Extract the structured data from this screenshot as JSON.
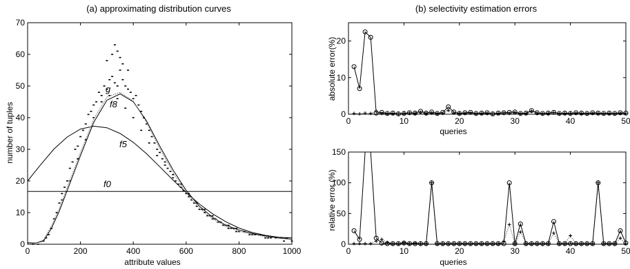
{
  "chart_data": [
    {
      "type": "scatter",
      "title": "(a) approximating distribution curves",
      "xlabel": "attribute values",
      "ylabel": "number of tuples",
      "xlim": [
        0,
        1000
      ],
      "ylim": [
        0,
        70
      ],
      "xticks": [
        0,
        200,
        400,
        600,
        800,
        1000
      ],
      "yticks": [
        0,
        10,
        20,
        30,
        40,
        50,
        60,
        70
      ],
      "grid": false,
      "series": [
        {
          "kind": "scatter",
          "x": [
            20,
            40,
            60,
            70,
            80,
            90,
            100,
            110,
            120,
            130,
            140,
            150,
            160,
            170,
            180,
            190,
            200,
            210,
            220,
            230,
            240,
            250,
            260,
            270,
            280,
            290,
            300,
            310,
            320,
            330,
            340,
            350,
            360,
            370,
            380,
            390,
            400,
            410,
            420,
            430,
            440,
            450,
            460,
            470,
            480,
            490,
            500,
            510,
            520,
            530,
            540,
            550,
            560,
            570,
            580,
            590,
            600,
            610,
            620,
            630,
            640,
            650,
            660,
            670,
            680,
            690,
            700,
            710,
            720,
            730,
            740,
            750,
            760,
            770,
            780,
            790,
            800,
            820,
            840,
            860,
            880,
            900,
            920,
            940,
            960,
            980,
            1000,
            130,
            160,
            190,
            220,
            250,
            280,
            310,
            340,
            370,
            400,
            430,
            460,
            490,
            520,
            550,
            580,
            610,
            640,
            670,
            700,
            730,
            760,
            790,
            820,
            850,
            880,
            910,
            940,
            970,
            300,
            320,
            340,
            360,
            380,
            330,
            350
          ],
          "y": [
            0,
            0,
            1,
            2,
            3,
            5,
            8,
            10,
            13,
            16,
            18,
            20,
            24,
            26,
            30,
            31,
            34,
            36,
            38,
            41,
            42,
            44,
            45,
            48,
            47,
            50,
            49,
            52,
            53,
            51,
            50,
            55,
            52,
            50,
            49,
            48,
            46,
            47,
            44,
            42,
            40,
            38,
            36,
            34,
            32,
            30,
            29,
            27,
            26,
            24,
            23,
            21,
            20,
            19,
            18,
            17,
            16,
            15,
            14,
            13,
            12,
            11,
            11,
            10,
            9,
            9,
            8,
            8,
            7,
            7,
            6,
            6,
            5,
            5,
            5,
            4,
            4,
            4,
            3,
            3,
            3,
            2,
            2,
            2,
            2,
            2,
            1,
            14,
            20,
            27,
            33,
            40,
            45,
            47,
            46,
            43,
            40,
            36,
            32,
            28,
            25,
            22,
            19,
            16,
            13,
            11,
            9,
            7,
            6,
            5,
            4,
            3,
            3,
            2,
            2,
            1,
            58,
            60,
            61,
            57,
            55,
            63,
            59
          ]
        },
        {
          "name": "f0",
          "kind": "line",
          "x": [
            0,
            1000
          ],
          "y": [
            16.7,
            16.7
          ]
        },
        {
          "name": "f5",
          "kind": "line",
          "x": [
            0,
            50,
            100,
            150,
            200,
            250,
            300,
            350,
            400,
            450,
            500,
            550,
            600,
            650,
            700,
            750,
            800,
            850,
            900,
            950,
            1000
          ],
          "y": [
            20.0,
            25.2,
            30.1,
            33.9,
            36.4,
            37.3,
            36.8,
            35.0,
            32.2,
            28.6,
            24.5,
            20.3,
            16.3,
            12.7,
            9.6,
            7.1,
            5.1,
            3.7,
            2.8,
            2.2,
            2.0
          ]
        },
        {
          "name": "f8",
          "kind": "line",
          "x": [
            0,
            30,
            60,
            90,
            120,
            150,
            200,
            250,
            300,
            350,
            400,
            450,
            500,
            550,
            600,
            650,
            700,
            750,
            800,
            850,
            900,
            950,
            1000
          ],
          "y": [
            0.5,
            0.4,
            1.0,
            5.0,
            10.5,
            17.0,
            28.0,
            38.5,
            45.5,
            47.5,
            45.0,
            39.0,
            31.0,
            23.5,
            17.0,
            12.0,
            8.5,
            6.0,
            4.5,
            3.4,
            2.6,
            2.0,
            1.6
          ]
        },
        {
          "name": "g",
          "kind": "line",
          "x": [
            0,
            30,
            60,
            90,
            120,
            150,
            200,
            250,
            300,
            350,
            400,
            450,
            500,
            550,
            600,
            650,
            700,
            750,
            800,
            850,
            900,
            950,
            1000
          ],
          "y": [
            0.3,
            0.3,
            1.4,
            5.8,
            11.4,
            18.0,
            29.0,
            39.5,
            46.5,
            48.0,
            45.2,
            38.5,
            30.2,
            22.7,
            16.3,
            11.4,
            8.0,
            5.6,
            4.1,
            3.1,
            2.4,
            1.9,
            1.5
          ]
        }
      ]
    },
    {
      "type": "line",
      "title": "(b) selectivity estimation errors",
      "xlabel": "queries",
      "ylabel": "absolute error(%)",
      "xlim": [
        0,
        50
      ],
      "ylim": [
        0,
        25
      ],
      "xticks": [
        0,
        10,
        20,
        30,
        40,
        50
      ],
      "yticks": [
        0,
        10,
        20
      ],
      "series": [
        {
          "kind": "circle-line",
          "x": [
            1,
            2,
            3,
            4,
            5,
            6,
            7,
            8,
            9,
            10,
            11,
            12,
            13,
            14,
            15,
            16,
            17,
            18,
            19,
            20,
            21,
            22,
            23,
            24,
            25,
            26,
            27,
            28,
            29,
            30,
            31,
            32,
            33,
            34,
            35,
            36,
            37,
            38,
            39,
            40,
            41,
            42,
            43,
            44,
            45,
            46,
            47,
            48,
            49,
            50
          ],
          "y": [
            13,
            7,
            22.5,
            21,
            0.3,
            0.5,
            0.2,
            0.3,
            0.1,
            0.2,
            0.4,
            0.3,
            0.8,
            0.3,
            0.6,
            0.2,
            0.5,
            2,
            0.6,
            0.2,
            0.4,
            0.5,
            0.2,
            0.3,
            0.4,
            0.1,
            0.3,
            0.4,
            0.5,
            0.6,
            0.2,
            0.3,
            1,
            0.4,
            0.2,
            0.3,
            0.5,
            0.2,
            0.3,
            0.2,
            0.4,
            0.3,
            0.2,
            0.4,
            0.3,
            0.2,
            0.3,
            0.2,
            0.4,
            0.3
          ]
        },
        {
          "kind": "plus-dotted",
          "x": [
            1,
            2,
            3,
            4,
            5,
            6,
            7,
            8,
            9,
            10,
            11,
            12,
            13,
            14,
            15,
            16,
            17,
            18,
            19,
            20,
            21,
            22,
            23,
            24,
            25,
            26,
            27,
            28,
            29,
            30,
            31,
            32,
            33,
            34,
            35,
            36,
            37,
            38,
            39,
            40,
            41,
            42,
            43,
            44,
            45,
            46,
            47,
            48,
            49,
            50
          ],
          "y": [
            0.2,
            0.1,
            0.3,
            0.2,
            0.9,
            0.2,
            0.1,
            0.2,
            0.1,
            0.2,
            0.3,
            0.2,
            0.4,
            0.2,
            0.3,
            0.1,
            0.2,
            1.0,
            0.3,
            0.1,
            0.2,
            0.3,
            0.1,
            0.2,
            0.2,
            0.1,
            0.2,
            0.3,
            0.2,
            0.4,
            0.1,
            0.2,
            0.8,
            0.2,
            0.1,
            0.2,
            0.4,
            0.1,
            0.2,
            0.1,
            0.2,
            0.2,
            0.1,
            0.2,
            0.2,
            0.1,
            0.2,
            0.1,
            0.2,
            0.2
          ]
        }
      ]
    },
    {
      "type": "line",
      "title": "",
      "xlabel": "queries",
      "ylabel": "relative error (%)",
      "xlim": [
        0,
        50
      ],
      "ylim": [
        0,
        150
      ],
      "xticks": [
        0,
        10,
        20,
        30,
        40,
        50
      ],
      "yticks": [
        0,
        50,
        100,
        150
      ],
      "series": [
        {
          "kind": "circle-line",
          "x": [
            1,
            2,
            3,
            4,
            5,
            6,
            7,
            8,
            9,
            10,
            11,
            12,
            13,
            14,
            15,
            16,
            17,
            18,
            19,
            20,
            21,
            22,
            23,
            24,
            25,
            26,
            27,
            28,
            29,
            30,
            31,
            32,
            33,
            34,
            35,
            36,
            37,
            38,
            39,
            40,
            41,
            42,
            43,
            44,
            45,
            46,
            47,
            48,
            49,
            50
          ],
          "y": [
            22,
            8,
            160,
            160,
            10,
            2,
            1,
            1,
            1,
            2,
            1,
            1,
            1,
            1,
            100,
            1,
            1,
            1,
            1,
            1,
            1,
            1,
            1,
            1,
            1,
            1,
            1,
            1,
            100,
            1,
            33,
            1,
            1,
            1,
            1,
            1,
            37,
            1,
            1,
            1,
            1,
            1,
            1,
            1,
            100,
            1,
            1,
            1,
            22,
            2
          ]
        },
        {
          "kind": "plus-dotted",
          "x": [
            1,
            2,
            3,
            4,
            5,
            6,
            7,
            8,
            9,
            10,
            11,
            12,
            13,
            14,
            15,
            16,
            17,
            18,
            19,
            20,
            21,
            22,
            23,
            24,
            25,
            26,
            27,
            28,
            29,
            30,
            31,
            32,
            33,
            34,
            35,
            36,
            37,
            38,
            39,
            40,
            41,
            42,
            43,
            44,
            45,
            46,
            47,
            48,
            49,
            50
          ],
          "y": [
            1,
            1,
            1,
            1,
            5,
            8,
            3,
            1,
            1,
            3,
            1,
            2,
            1,
            1,
            100,
            1,
            1,
            1,
            1,
            1,
            1,
            1,
            1,
            1,
            1,
            1,
            1,
            5,
            32,
            1,
            20,
            1,
            1,
            1,
            1,
            1,
            18,
            1,
            1,
            14,
            1,
            1,
            1,
            1,
            100,
            1,
            1,
            1,
            10,
            1
          ]
        }
      ]
    }
  ]
}
